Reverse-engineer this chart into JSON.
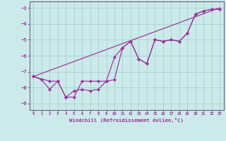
{
  "xlabel": "Windchill (Refroidissement éolien,°C)",
  "bg_color": "#cceaea",
  "grid_color": "#aad4d4",
  "line_color": "#993399",
  "spine_color": "#666688",
  "xlim": [
    -0.5,
    23.5
  ],
  "ylim": [
    -9.4,
    -2.6
  ],
  "yticks": [
    -9,
    -8,
    -7,
    -6,
    -5,
    -4,
    -3
  ],
  "xticks": [
    0,
    1,
    2,
    3,
    4,
    5,
    6,
    7,
    8,
    9,
    10,
    11,
    12,
    13,
    14,
    15,
    16,
    17,
    18,
    19,
    20,
    21,
    22,
    23
  ],
  "trend_x": [
    0,
    23
  ],
  "trend_y": [
    -7.3,
    -3.0
  ],
  "series1_x": [
    0,
    1,
    2,
    3,
    4,
    5,
    6,
    7,
    8,
    9,
    10,
    11,
    12,
    13,
    14,
    15,
    16,
    17,
    18,
    19,
    20,
    21,
    22,
    23
  ],
  "series1_y": [
    -7.3,
    -7.5,
    -8.1,
    -7.6,
    -8.6,
    -8.2,
    -8.1,
    -8.2,
    -8.1,
    -7.6,
    -7.5,
    -5.5,
    -5.1,
    -6.2,
    -6.5,
    -5.0,
    -5.1,
    -5.0,
    -5.1,
    -4.6,
    -3.4,
    -3.2,
    -3.1,
    -3.1
  ],
  "series2_x": [
    0,
    2,
    3,
    4,
    5,
    6,
    7,
    8,
    9,
    10,
    11,
    12,
    13,
    14,
    15,
    16,
    17,
    18,
    19,
    20,
    21,
    22,
    23
  ],
  "series2_y": [
    -7.3,
    -7.6,
    -7.6,
    -8.6,
    -8.6,
    -7.6,
    -7.6,
    -7.6,
    -7.6,
    -6.1,
    -5.5,
    -5.1,
    -6.2,
    -6.5,
    -5.0,
    -5.1,
    -5.0,
    -5.1,
    -4.6,
    -3.4,
    -3.2,
    -3.1,
    -3.1
  ]
}
